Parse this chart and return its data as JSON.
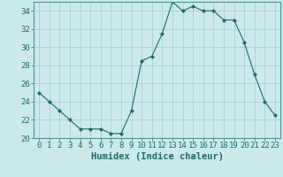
{
  "xlabel": "Humidex (Indice chaleur)",
  "x": [
    0,
    1,
    2,
    3,
    4,
    5,
    6,
    7,
    8,
    9,
    10,
    11,
    12,
    13,
    14,
    15,
    16,
    17,
    18,
    19,
    20,
    21,
    22,
    23
  ],
  "y": [
    25,
    24,
    23,
    22,
    21,
    21,
    21,
    20.5,
    20.5,
    23,
    28.5,
    29,
    31.5,
    35,
    34,
    34.5,
    34,
    34,
    33,
    33,
    30.5,
    27,
    24,
    22.5
  ],
  "line_color": "#1a6b6b",
  "marker": "D",
  "marker_size": 2,
  "bg_color": "#cce9e9",
  "grid_color": "#a0cccc",
  "ylim": [
    20,
    35
  ],
  "yticks": [
    20,
    22,
    24,
    26,
    28,
    30,
    32,
    34
  ],
  "xlim": [
    -0.5,
    23.5
  ],
  "xticks": [
    0,
    1,
    2,
    3,
    4,
    5,
    6,
    7,
    8,
    9,
    10,
    11,
    12,
    13,
    14,
    15,
    16,
    17,
    18,
    19,
    20,
    21,
    22,
    23
  ],
  "tick_color": "#1a6b6b",
  "axis_color": "#4a9a9a",
  "label_fontsize": 7.5,
  "tick_fontsize": 6.5
}
